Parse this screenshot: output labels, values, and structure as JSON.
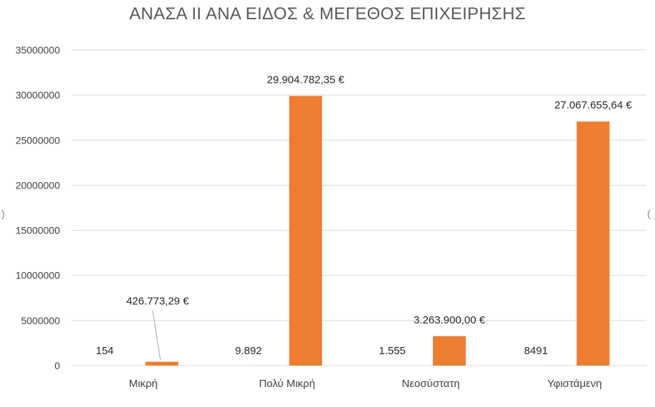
{
  "chart_data": {
    "type": "bar",
    "title": "ΑΝΑΣΑ ΙΙ ΑΝΑ ΕΙΔΟΣ & ΜΕΓΕΘΟΣ ΕΠΙΧΕΙΡΗΣΗΣ",
    "categories": [
      "Μικρή",
      "Πολύ Μικρή",
      "Νεοσύστατη",
      "Υφιστάμενη"
    ],
    "series": [
      {
        "values": [
          154,
          9892,
          1555,
          8491
        ],
        "data_labels": [
          "154",
          "9.892",
          "1.555",
          "8491"
        ],
        "color": "#ed7d31"
      },
      {
        "values": [
          426773.29,
          29904782.35,
          3263900.0,
          27067655.64
        ],
        "data_labels": [
          "426.773,29 €",
          "29.904.782,35 €",
          "3.263.900,00 €",
          "27.067.655,64 €"
        ],
        "color": "#ed7d31"
      }
    ],
    "ylim": [
      0,
      35000000
    ],
    "yticks": [
      "0",
      "5000000",
      "10000000",
      "15000000",
      "20000000",
      "25000000",
      "30000000",
      "35000000"
    ],
    "ytick_values": [
      0,
      5000000,
      10000000,
      15000000,
      20000000,
      25000000,
      30000000,
      35000000
    ],
    "grid": true,
    "legend": "none",
    "xlabel": "",
    "ylabel": ""
  },
  "edge_marks": {
    "left": ")",
    "right": "("
  }
}
